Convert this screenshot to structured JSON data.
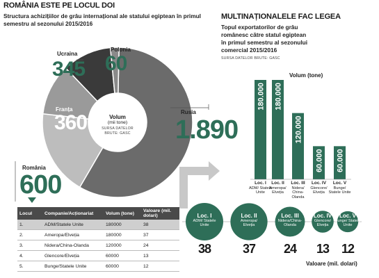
{
  "left": {
    "title": "ROMÂNIA ESTE PE LOCUL DOI",
    "subtitle_line1": "Structura achizițiilor de grâu internațional ale statului egiptean în primul",
    "subtitle_line2": "semestru al sezonului 2015/2016",
    "center_label_1": "Volum",
    "center_label_2": "(mii tone)",
    "center_source_1": "SURSA DATELOR",
    "center_source_2": "BRUTE: GASC"
  },
  "right": {
    "title": "MULTINAȚIONALELE FAC LEGEA",
    "subtitle_line1": "Topul exportatorilor de grâu",
    "subtitle_line2": "românesc către statul egiptean",
    "subtitle_line3": "în primul semestru al sezonului",
    "subtitle_line4": "comercial 2015/2016",
    "source": "SURSA DATELOR BRUTE: GASC",
    "bar_axis_label": "Volum (tone)",
    "circle_axis_label": "Valoare (mil. dolari)"
  },
  "table": {
    "headers": [
      "Locul",
      "Companie/Acționariat",
      "Volum (tone)",
      "Valoare (mil. dolari)"
    ],
    "rows": [
      [
        "1.",
        "ADM/Statele Unite",
        "180000",
        "38"
      ],
      [
        "2.",
        "Ameropa/Elveția",
        "180000",
        "37"
      ],
      [
        "3.",
        "Nidera/China-Olanda",
        "120000",
        "24"
      ],
      [
        "4.",
        "Glencore/Elveția",
        "60000",
        "13"
      ],
      [
        "5.",
        "Bunge/Statele Unite",
        "60000",
        "12"
      ]
    ]
  },
  "chart_data": [
    {
      "type": "pie",
      "title": "ROMÂNIA ESTE PE LOCUL DOI",
      "subtitle": "Structura achizițiilor de grâu internațional ale statului egiptean în primul semestru al sezonului 2015/2016",
      "unit": "mii tone",
      "categories": [
        "Rusia",
        "România",
        "Franța",
        "Ucraina",
        "Polonia"
      ],
      "values": [
        1890,
        600,
        360,
        345,
        60
      ],
      "value_labels": [
        "1.890",
        "600",
        "360",
        "345",
        "60"
      ],
      "colors": [
        "#6b6b6b",
        "#bdbdbd",
        "#9a9a9a",
        "#3a3a3a",
        "#8a8a8a"
      ]
    },
    {
      "type": "bar",
      "title": "MULTINAȚIONALELE FAC LEGEA",
      "ylabel": "Volum (tone)",
      "categories": [
        "Loc. I",
        "Loc. II",
        "Loc. III",
        "Loc. IV",
        "Loc. V"
      ],
      "companies": [
        "ADM/ Statele Unite",
        "Ameropa/ Elveția",
        "Nidera/ China- Olanda",
        "Glencore/ Elveția",
        "Bunge/ Statele Unite"
      ],
      "values": [
        180000,
        180000,
        120000,
        60000,
        60000
      ],
      "value_labels": [
        "180.000",
        "180.000",
        "120.000",
        "60.000",
        "60.000"
      ],
      "color": "#2e6e58"
    },
    {
      "type": "scatter",
      "xlabel": "Valoare (mil. dolari)",
      "categories": [
        "Loc. I",
        "Loc. II",
        "Loc. III",
        "Loc. IV",
        "Loc. V"
      ],
      "companies": [
        "ADM/ Statele Unite",
        "Ameropa/ Elveția",
        "Nidera/China- Olanda",
        "Glencore/ Elveția",
        "Bunge/ Statele Unite"
      ],
      "values": [
        38,
        37,
        24,
        13,
        12
      ],
      "color": "#2e6e58"
    }
  ]
}
